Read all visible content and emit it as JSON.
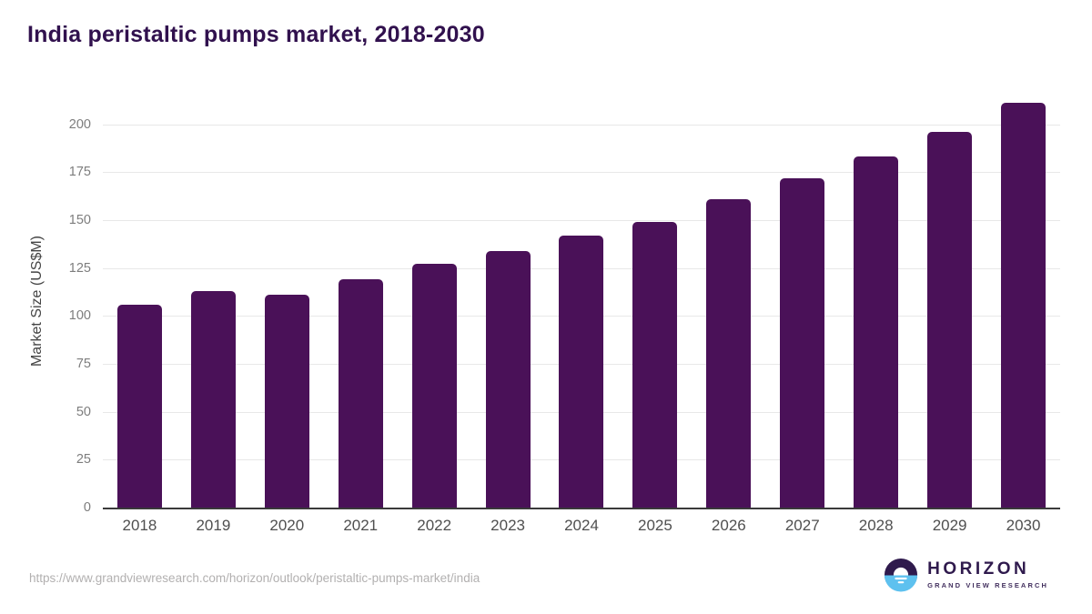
{
  "title": "India peristaltic pumps market, 2018-2030",
  "footer": {
    "source_url": "https://www.grandviewresearch.com/horizon/outlook/peristaltic-pumps-market/india",
    "logo": {
      "name": "HORIZON",
      "subtitle": "GRAND VIEW RESEARCH"
    }
  },
  "colors": {
    "bar": "#4a1158",
    "title": "#31114e",
    "gridline": "#e8e8e8",
    "axis_line": "#3a3a3a",
    "y_tick": "#7d7d7d",
    "x_tick": "#4f4f4f",
    "url_text": "#b2b0b0",
    "logo_purple": "#2f1a4d",
    "logo_blue": "#5ec1ef"
  },
  "chart_data": {
    "type": "bar",
    "title": "India peristaltic pumps market, 2018-2030",
    "xlabel": "",
    "ylabel": "Market Size (US$M)",
    "categories": [
      "2018",
      "2019",
      "2020",
      "2021",
      "2022",
      "2023",
      "2024",
      "2025",
      "2026",
      "2027",
      "2028",
      "2029",
      "2030"
    ],
    "values": [
      106,
      113,
      111,
      119,
      127,
      134,
      142,
      149,
      161,
      172,
      183,
      196,
      211
    ],
    "ylim": [
      0,
      215
    ],
    "yticks": [
      0,
      25,
      50,
      75,
      100,
      125,
      150,
      175,
      200
    ],
    "grid": true,
    "legend": "none",
    "bar_color": "#4a1158"
  }
}
